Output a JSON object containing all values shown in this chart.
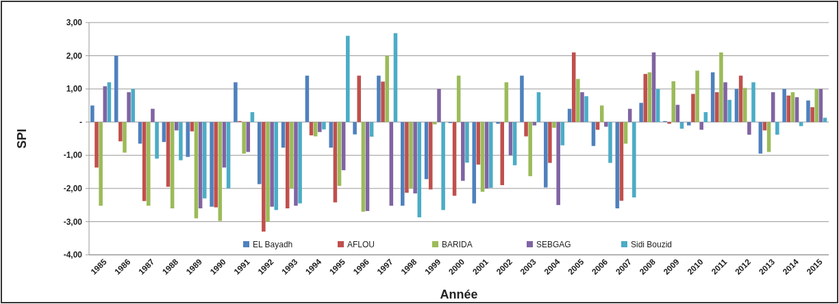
{
  "chart_data": {
    "type": "bar",
    "xlabel": "Année",
    "ylabel": "SPI",
    "categories": [
      "1985",
      "1986",
      "1987",
      "1988",
      "1989",
      "1990",
      "1991",
      "1992",
      "1993",
      "1994",
      "1995",
      "1996",
      "1997",
      "1998",
      "1999",
      "2000",
      "2001",
      "2002",
      "2003",
      "2004",
      "2005",
      "2006",
      "2007",
      "2008",
      "2009",
      "2010",
      "2011",
      "2012",
      "2013",
      "2014",
      "2015"
    ],
    "series": [
      {
        "name": "EL Bayadh",
        "color": "#4f81bd",
        "values": [
          0.5,
          2.0,
          -0.65,
          -0.6,
          -1.05,
          -2.55,
          1.2,
          -1.87,
          -0.77,
          1.4,
          -0.77,
          -0.37,
          1.4,
          -2.52,
          -1.72,
          -0.03,
          -2.45,
          -0.05,
          1.4,
          -1.97,
          0.4,
          -0.72,
          -2.6,
          0.58,
          0.03,
          -0.1,
          1.5,
          1.0,
          -0.95,
          1.0,
          0.65
        ]
      },
      {
        "name": "AFLOU",
        "color": "#c0504d",
        "values": [
          -1.37,
          -0.58,
          -2.38,
          -1.95,
          -0.28,
          -2.57,
          0.03,
          -3.3,
          -2.6,
          -0.4,
          -2.42,
          1.4,
          1.22,
          -2.13,
          -2.03,
          -2.22,
          -1.28,
          -1.9,
          -0.43,
          -1.23,
          2.1,
          -0.23,
          -2.37,
          1.45,
          -0.05,
          0.85,
          0.9,
          1.4,
          -0.25,
          0.8,
          0.45
        ]
      },
      {
        "name": "BARIDA",
        "color": "#9bbb59",
        "values": [
          -2.52,
          -0.92,
          -2.52,
          -2.6,
          -2.9,
          -2.98,
          -0.95,
          -3.0,
          -2.0,
          -0.43,
          -1.92,
          -2.7,
          2.0,
          -2.0,
          -0.07,
          1.4,
          -2.1,
          1.2,
          -1.63,
          -0.17,
          1.3,
          0.5,
          -0.65,
          1.5,
          1.23,
          1.55,
          2.1,
          1.03,
          -0.9,
          0.9,
          1.0
        ]
      },
      {
        "name": "SEBGAG",
        "color": "#8064a2",
        "values": [
          1.08,
          0.9,
          0.4,
          -0.25,
          -2.6,
          -1.37,
          -0.9,
          -2.55,
          -2.52,
          -0.3,
          -1.45,
          -2.68,
          -2.52,
          -2.15,
          1.0,
          -1.77,
          -2.0,
          -1.0,
          -0.1,
          -2.5,
          0.9,
          -0.14,
          0.4,
          2.1,
          0.52,
          -0.23,
          1.2,
          -0.38,
          0.9,
          0.75,
          1.0
        ]
      },
      {
        "name": "Sidi Bouzid",
        "color": "#4bacc6",
        "values": [
          1.2,
          1.0,
          -1.1,
          -1.15,
          -2.3,
          -2.0,
          0.3,
          -2.65,
          -2.45,
          -0.22,
          2.6,
          -0.44,
          2.68,
          -2.87,
          -2.65,
          -1.22,
          -1.98,
          -1.3,
          0.9,
          -0.7,
          0.78,
          -1.23,
          -2.27,
          1.0,
          -0.2,
          0.3,
          0.67,
          1.2,
          -0.38,
          -0.12,
          0.13
        ]
      }
    ],
    "ylim": [
      -4,
      3
    ],
    "yticks": [
      {
        "value": 3,
        "label": "3,00"
      },
      {
        "value": 2,
        "label": "2,00"
      },
      {
        "value": 1,
        "label": "1,00"
      },
      {
        "value": 0,
        "label": "-"
      },
      {
        "value": -1,
        "label": "-1,00"
      },
      {
        "value": -2,
        "label": "-2,00"
      },
      {
        "value": -3,
        "label": "-3,00"
      },
      {
        "value": -4,
        "label": "-4,00"
      }
    ],
    "grid": "y",
    "legend": "bottom"
  }
}
